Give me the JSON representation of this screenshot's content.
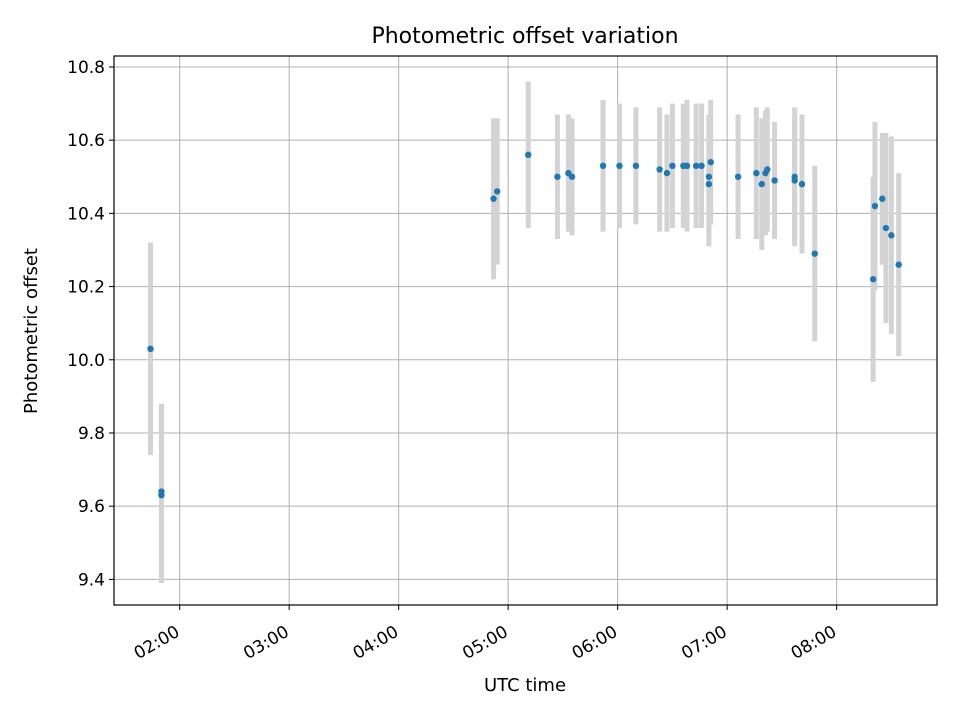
{
  "chart_data": {
    "type": "scatter",
    "title": "Photometric offset variation",
    "xlabel": "UTC time",
    "ylabel": "Photometric offset",
    "x_ticks": [
      "02:00",
      "03:00",
      "04:00",
      "05:00",
      "06:00",
      "07:00",
      "08:00"
    ],
    "y_ticks": [
      "9.4",
      "9.6",
      "9.8",
      "10.0",
      "10.2",
      "10.4",
      "10.6",
      "10.8"
    ],
    "xlim": [
      "01:24",
      "08:55"
    ],
    "ylim": [
      9.33,
      10.83
    ],
    "grid": true,
    "colors": {
      "point": "#1f77b4",
      "errorbar": "#d3d3d3",
      "grid": "#b0b0b0"
    },
    "series": [
      {
        "points": [
          {
            "x": "01:44",
            "y": 10.03,
            "err": 0.29
          },
          {
            "x": "01:50",
            "y": 9.64,
            "err": 0.24
          },
          {
            "x": "01:50",
            "y": 9.63,
            "err": 0.24
          },
          {
            "x": "04:52",
            "y": 10.44,
            "err": 0.22
          },
          {
            "x": "04:54",
            "y": 10.46,
            "err": 0.2
          },
          {
            "x": "05:11",
            "y": 10.56,
            "err": 0.2
          },
          {
            "x": "05:27",
            "y": 10.5,
            "err": 0.17
          },
          {
            "x": "05:33",
            "y": 10.51,
            "err": 0.16
          },
          {
            "x": "05:35",
            "y": 10.5,
            "err": 0.16
          },
          {
            "x": "05:52",
            "y": 10.53,
            "err": 0.18
          },
          {
            "x": "06:01",
            "y": 10.53,
            "err": 0.17
          },
          {
            "x": "06:10",
            "y": 10.53,
            "err": 0.16
          },
          {
            "x": "06:23",
            "y": 10.52,
            "err": 0.17
          },
          {
            "x": "06:27",
            "y": 10.51,
            "err": 0.16
          },
          {
            "x": "06:30",
            "y": 10.53,
            "err": 0.17
          },
          {
            "x": "06:36",
            "y": 10.53,
            "err": 0.17
          },
          {
            "x": "06:38",
            "y": 10.53,
            "err": 0.18
          },
          {
            "x": "06:43",
            "y": 10.53,
            "err": 0.17
          },
          {
            "x": "06:46",
            "y": 10.53,
            "err": 0.17
          },
          {
            "x": "06:50",
            "y": 10.48,
            "err": 0.17
          },
          {
            "x": "06:50",
            "y": 10.5,
            "err": 0.17
          },
          {
            "x": "06:51",
            "y": 10.54,
            "err": 0.17
          },
          {
            "x": "07:06",
            "y": 10.5,
            "err": 0.17
          },
          {
            "x": "07:16",
            "y": 10.51,
            "err": 0.18
          },
          {
            "x": "07:19",
            "y": 10.48,
            "err": 0.18
          },
          {
            "x": "07:21",
            "y": 10.51,
            "err": 0.17
          },
          {
            "x": "07:22",
            "y": 10.52,
            "err": 0.17
          },
          {
            "x": "07:26",
            "y": 10.49,
            "err": 0.16
          },
          {
            "x": "07:37",
            "y": 10.5,
            "err": 0.19
          },
          {
            "x": "07:37",
            "y": 10.49,
            "err": 0.17
          },
          {
            "x": "07:41",
            "y": 10.48,
            "err": 0.19
          },
          {
            "x": "07:48",
            "y": 10.29,
            "err": 0.24
          },
          {
            "x": "08:20",
            "y": 10.22,
            "err": 0.28
          },
          {
            "x": "08:21",
            "y": 10.42,
            "err": 0.23
          },
          {
            "x": "08:25",
            "y": 10.44,
            "err": 0.18
          },
          {
            "x": "08:27",
            "y": 10.36,
            "err": 0.26
          },
          {
            "x": "08:30",
            "y": 10.34,
            "err": 0.27
          },
          {
            "x": "08:34",
            "y": 10.26,
            "err": 0.25
          }
        ]
      }
    ]
  }
}
